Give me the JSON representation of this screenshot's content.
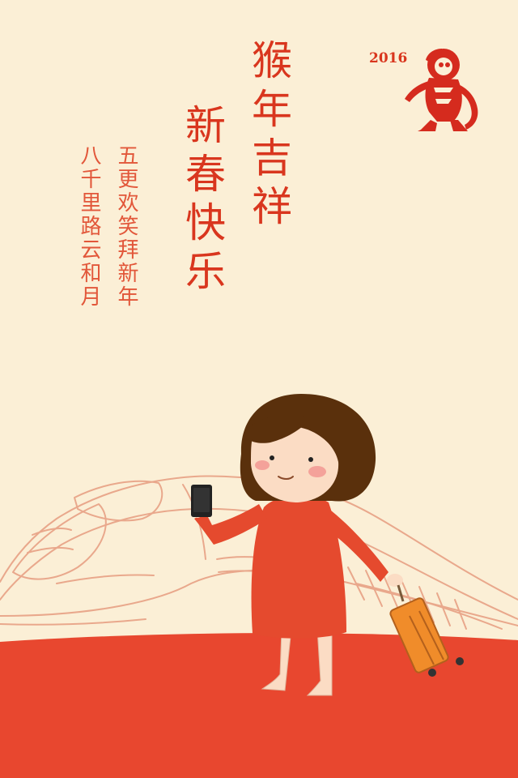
{
  "greeting": {
    "title_col_1": "猴年吉祥",
    "title_col_2": "新春快乐"
  },
  "poem": {
    "col_1": "五更欢笑拜新年",
    "col_2": "八千里路云和月"
  },
  "badge": {
    "year": "2016"
  },
  "palette": {
    "background": "#fbefd6",
    "ground": "#e8472f",
    "title_red": "#d9361e",
    "dress": "#e54a2e",
    "hair": "#5a300c",
    "suitcase": "#f08c2a"
  },
  "icons": [
    "monkey-papercut-icon",
    "phone-icon",
    "suitcase-icon",
    "train-outline-icon"
  ]
}
